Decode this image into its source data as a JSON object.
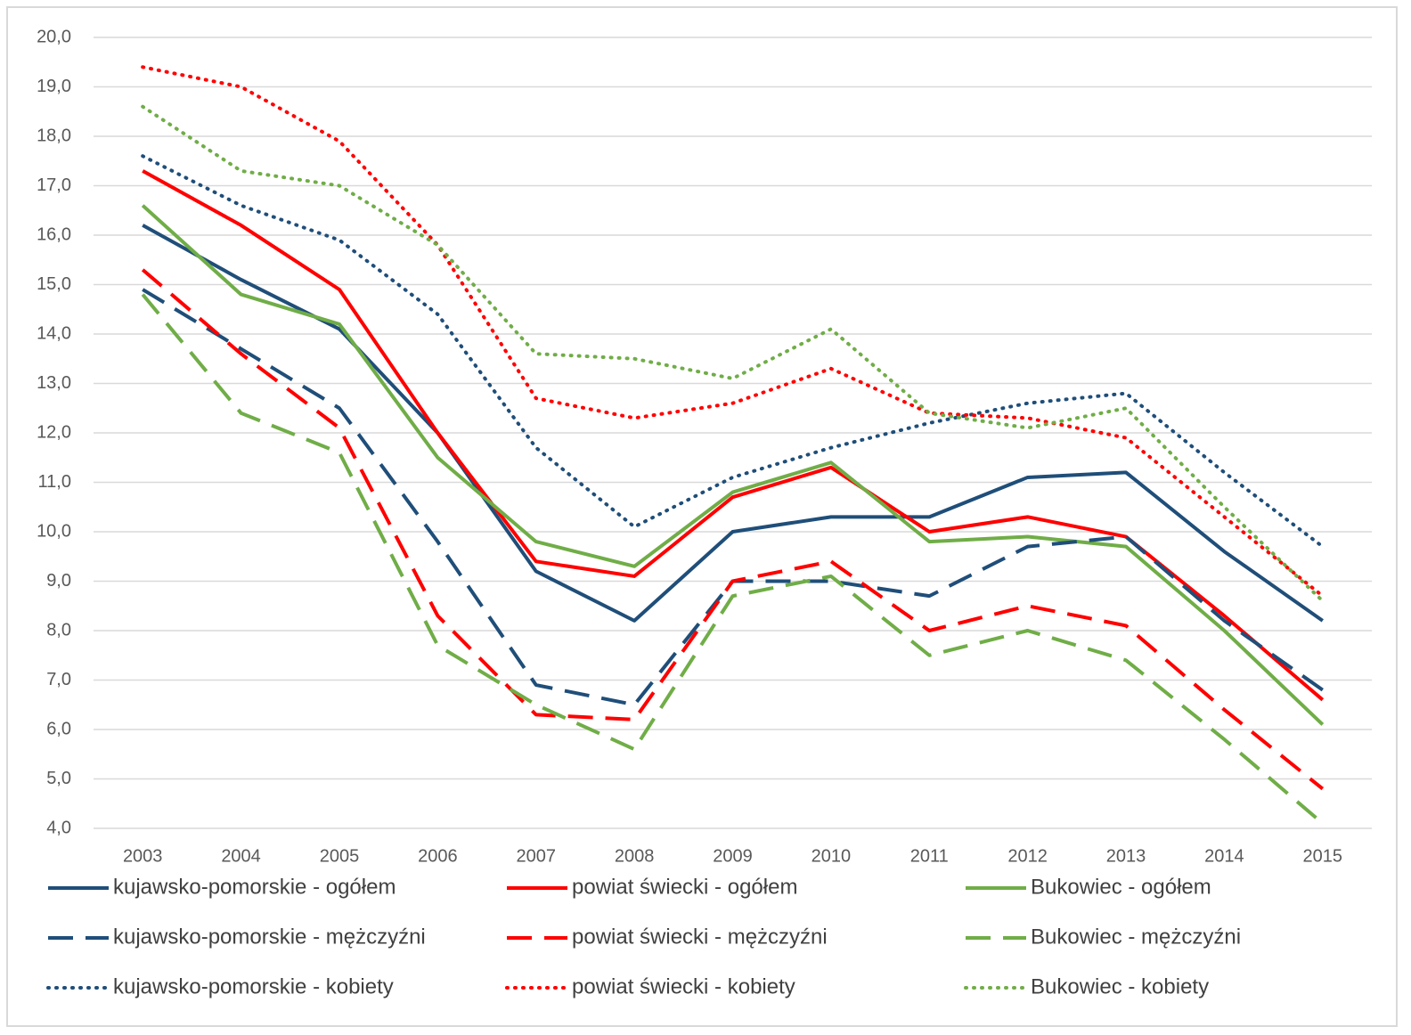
{
  "chart_data": {
    "type": "line",
    "categories": [
      "2003",
      "2004",
      "2005",
      "2006",
      "2007",
      "2008",
      "2009",
      "2010",
      "2011",
      "2012",
      "2013",
      "2014",
      "2015"
    ],
    "ylim": [
      4,
      20
    ],
    "yticks": [
      {
        "value": 4,
        "label": "4,0"
      },
      {
        "value": 5,
        "label": "5,0"
      },
      {
        "value": 6,
        "label": "6,0"
      },
      {
        "value": 7,
        "label": "7,0"
      },
      {
        "value": 8,
        "label": "8,0"
      },
      {
        "value": 9,
        "label": "9,0"
      },
      {
        "value": 10,
        "label": "10,0"
      },
      {
        "value": 11,
        "label": "11,0"
      },
      {
        "value": 12,
        "label": "12,0"
      },
      {
        "value": 13,
        "label": "13,0"
      },
      {
        "value": 14,
        "label": "14,0"
      },
      {
        "value": 15,
        "label": "15,0"
      },
      {
        "value": 16,
        "label": "16,0"
      },
      {
        "value": 17,
        "label": "17,0"
      },
      {
        "value": 18,
        "label": "18,0"
      },
      {
        "value": 19,
        "label": "19,0"
      },
      {
        "value": 20,
        "label": "20,0"
      }
    ],
    "grid": true,
    "legend": "bottom",
    "series": [
      {
        "name": "kujawsko-pomorskie - ogółem",
        "color": "#1f4e79",
        "style": "solid",
        "values": [
          16.2,
          15.1,
          14.1,
          12.0,
          9.2,
          8.2,
          10.0,
          10.3,
          10.3,
          11.1,
          11.2,
          9.6,
          8.2
        ]
      },
      {
        "name": "powiat świecki - ogółem",
        "color": "#ff0000",
        "style": "solid",
        "values": [
          17.3,
          16.2,
          14.9,
          12.0,
          9.4,
          9.1,
          10.7,
          11.3,
          10.0,
          10.3,
          9.9,
          8.3,
          6.6
        ]
      },
      {
        "name": "Bukowiec - ogółem",
        "color": "#70ad47",
        "style": "solid",
        "values": [
          16.6,
          14.8,
          14.2,
          11.5,
          9.8,
          9.3,
          10.8,
          11.4,
          9.8,
          9.9,
          9.7,
          8.0,
          6.1
        ]
      },
      {
        "name": "kujawsko-pomorskie - mężczyźni",
        "color": "#1f4e79",
        "style": "dashed",
        "values": [
          14.9,
          13.7,
          12.5,
          9.8,
          6.9,
          6.5,
          9.0,
          9.0,
          8.7,
          9.7,
          9.9,
          8.2,
          6.8
        ]
      },
      {
        "name": "powiat świecki - mężczyźni",
        "color": "#ff0000",
        "style": "dashed",
        "values": [
          15.3,
          13.6,
          12.1,
          8.3,
          6.3,
          6.2,
          9.0,
          9.4,
          8.0,
          8.5,
          8.1,
          6.4,
          4.8
        ]
      },
      {
        "name": "Bukowiec - mężczyźni",
        "color": "#70ad47",
        "style": "dashed",
        "values": [
          14.8,
          12.4,
          11.6,
          7.7,
          6.5,
          5.6,
          8.7,
          9.1,
          7.5,
          8.0,
          7.4,
          5.8,
          4.1
        ]
      },
      {
        "name": "kujawsko-pomorskie - kobiety",
        "color": "#1f4e79",
        "style": "dotted",
        "values": [
          17.6,
          16.6,
          15.9,
          14.4,
          11.7,
          10.1,
          11.1,
          11.7,
          12.2,
          12.6,
          12.8,
          11.2,
          9.7
        ]
      },
      {
        "name": "powiat świecki - kobiety",
        "color": "#ff0000",
        "style": "dotted",
        "values": [
          19.4,
          19.0,
          17.9,
          15.8,
          12.7,
          12.3,
          12.6,
          13.3,
          12.4,
          12.3,
          11.9,
          10.3,
          8.7
        ]
      },
      {
        "name": "Bukowiec - kobiety",
        "color": "#70ad47",
        "style": "dotted",
        "values": [
          18.6,
          17.3,
          17.0,
          15.8,
          13.6,
          13.5,
          13.1,
          14.1,
          12.4,
          12.1,
          12.5,
          10.5,
          8.6
        ]
      }
    ]
  }
}
